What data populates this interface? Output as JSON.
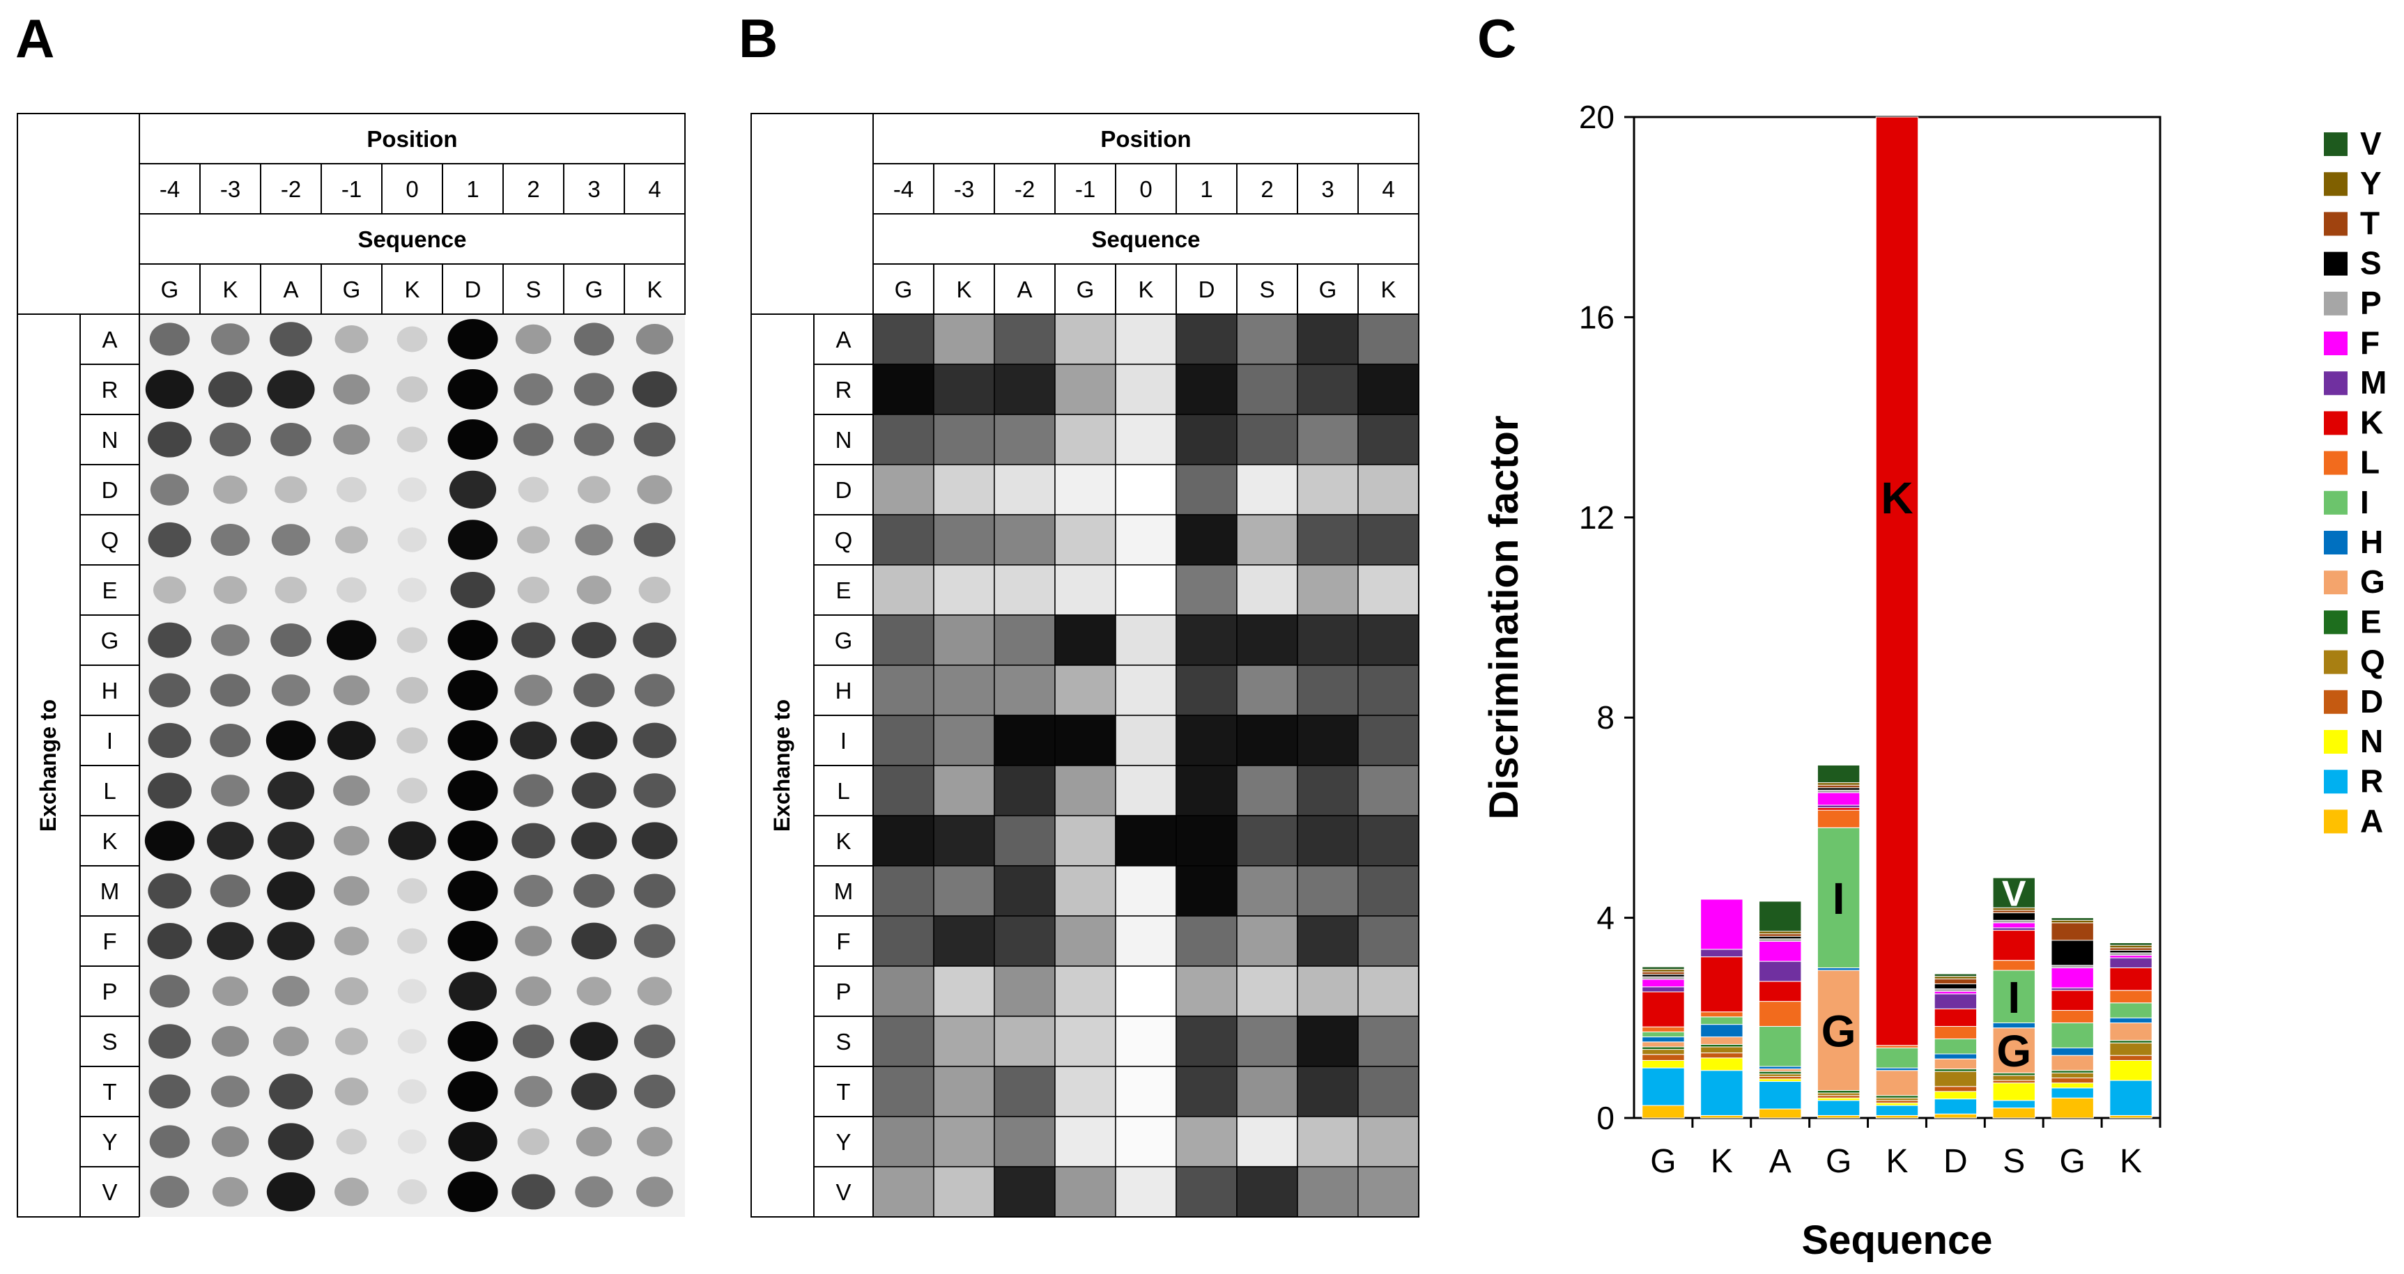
{
  "figure": {
    "panel_labels": [
      "A",
      "B",
      "C"
    ]
  },
  "table": {
    "position_label": "Position",
    "positions": [
      "-4",
      "-3",
      "-2",
      "-1",
      "0",
      "1",
      "2",
      "3",
      "4"
    ],
    "sequence_label": "Sequence",
    "sequence": [
      "G",
      "K",
      "A",
      "G",
      "K",
      "D",
      "S",
      "G",
      "K"
    ],
    "exchange_label": "Exchange to",
    "rows": [
      "A",
      "R",
      "N",
      "D",
      "Q",
      "E",
      "G",
      "H",
      "I",
      "L",
      "K",
      "M",
      "F",
      "P",
      "S",
      "T",
      "Y",
      "V"
    ]
  },
  "spot_intensity": [
    [
      0.55,
      0.48,
      0.65,
      0.25,
      0.12,
      1.0,
      0.35,
      0.55,
      0.42
    ],
    [
      0.92,
      0.72,
      0.88,
      0.4,
      0.15,
      1.0,
      0.5,
      0.55,
      0.75
    ],
    [
      0.72,
      0.6,
      0.58,
      0.4,
      0.12,
      1.0,
      0.55,
      0.55,
      0.62
    ],
    [
      0.48,
      0.28,
      0.2,
      0.1,
      0.05,
      0.85,
      0.12,
      0.22,
      0.32
    ],
    [
      0.68,
      0.5,
      0.48,
      0.22,
      0.06,
      0.98,
      0.22,
      0.45,
      0.62
    ],
    [
      0.22,
      0.25,
      0.18,
      0.1,
      0.05,
      0.75,
      0.18,
      0.3,
      0.18
    ],
    [
      0.7,
      0.48,
      0.58,
      0.98,
      0.12,
      1.0,
      0.72,
      0.75,
      0.7
    ],
    [
      0.62,
      0.55,
      0.48,
      0.38,
      0.18,
      1.0,
      0.45,
      0.6,
      0.55
    ],
    [
      0.68,
      0.58,
      0.98,
      0.92,
      0.15,
      1.0,
      0.85,
      0.85,
      0.7
    ],
    [
      0.72,
      0.48,
      0.85,
      0.4,
      0.12,
      1.0,
      0.55,
      0.75,
      0.65
    ],
    [
      0.98,
      0.85,
      0.85,
      0.35,
      0.9,
      1.0,
      0.7,
      0.8,
      0.8
    ],
    [
      0.7,
      0.55,
      0.9,
      0.35,
      0.1,
      1.0,
      0.5,
      0.6,
      0.62
    ],
    [
      0.75,
      0.85,
      0.88,
      0.3,
      0.1,
      1.0,
      0.4,
      0.78,
      0.6
    ],
    [
      0.55,
      0.35,
      0.42,
      0.25,
      0.05,
      0.9,
      0.35,
      0.3,
      0.3
    ],
    [
      0.65,
      0.42,
      0.35,
      0.22,
      0.05,
      1.0,
      0.6,
      0.9,
      0.6
    ],
    [
      0.62,
      0.48,
      0.72,
      0.25,
      0.05,
      1.0,
      0.45,
      0.8,
      0.6
    ],
    [
      0.55,
      0.42,
      0.8,
      0.12,
      0.04,
      0.95,
      0.18,
      0.35,
      0.35
    ],
    [
      0.5,
      0.35,
      0.92,
      0.28,
      0.08,
      1.0,
      0.7,
      0.45,
      0.4
    ]
  ],
  "heatmap_intensity": [
    [
      0.75,
      0.4,
      0.68,
      0.25,
      0.1,
      0.82,
      0.55,
      0.85,
      0.6
    ],
    [
      1.0,
      0.85,
      0.9,
      0.38,
      0.12,
      0.95,
      0.62,
      0.8,
      0.95
    ],
    [
      0.68,
      0.58,
      0.55,
      0.22,
      0.08,
      0.85,
      0.68,
      0.55,
      0.8
    ],
    [
      0.38,
      0.18,
      0.12,
      0.06,
      0.0,
      0.62,
      0.08,
      0.22,
      0.25
    ],
    [
      0.7,
      0.55,
      0.5,
      0.2,
      0.05,
      0.95,
      0.32,
      0.72,
      0.75
    ],
    [
      0.25,
      0.15,
      0.15,
      0.1,
      0.0,
      0.55,
      0.12,
      0.35,
      0.18
    ],
    [
      0.65,
      0.45,
      0.55,
      0.95,
      0.12,
      0.9,
      0.92,
      0.85,
      0.85
    ],
    [
      0.55,
      0.5,
      0.48,
      0.32,
      0.1,
      0.8,
      0.52,
      0.68,
      0.7
    ],
    [
      0.65,
      0.52,
      1.0,
      1.0,
      0.12,
      0.95,
      0.98,
      0.95,
      0.72
    ],
    [
      0.7,
      0.4,
      0.85,
      0.4,
      0.1,
      0.95,
      0.55,
      0.78,
      0.55
    ],
    [
      0.95,
      0.9,
      0.65,
      0.25,
      1.0,
      1.0,
      0.75,
      0.85,
      0.8
    ],
    [
      0.65,
      0.55,
      0.85,
      0.25,
      0.05,
      1.0,
      0.5,
      0.58,
      0.7
    ],
    [
      0.68,
      0.88,
      0.8,
      0.4,
      0.05,
      0.6,
      0.4,
      0.85,
      0.62
    ],
    [
      0.48,
      0.2,
      0.45,
      0.2,
      0.0,
      0.35,
      0.2,
      0.28,
      0.25
    ],
    [
      0.62,
      0.35,
      0.3,
      0.18,
      0.02,
      0.8,
      0.55,
      0.95,
      0.58
    ],
    [
      0.6,
      0.4,
      0.65,
      0.15,
      0.02,
      0.8,
      0.45,
      0.85,
      0.62
    ],
    [
      0.48,
      0.38,
      0.52,
      0.08,
      0.02,
      0.35,
      0.08,
      0.25,
      0.32
    ],
    [
      0.4,
      0.25,
      0.9,
      0.42,
      0.08,
      0.72,
      0.85,
      0.5,
      0.45
    ]
  ],
  "chart_data": {
    "type": "bar",
    "stacked": true,
    "title": "",
    "xlabel": "Sequence",
    "ylabel": "Discrimination factor",
    "ylim": [
      0,
      20
    ],
    "yticks": [
      0,
      4,
      8,
      12,
      16,
      20
    ],
    "categories": [
      "G",
      "K",
      "A",
      "G",
      "K",
      "D",
      "S",
      "G",
      "K"
    ],
    "legend_position": "right",
    "series": [
      {
        "name": "A",
        "color": "#FFC000",
        "values": [
          0.25,
          0.05,
          0.18,
          0.05,
          0.05,
          0.08,
          0.2,
          0.4,
          0.05
        ]
      },
      {
        "name": "R",
        "color": "#00B0F0",
        "values": [
          0.75,
          0.9,
          0.55,
          0.3,
          0.2,
          0.3,
          0.15,
          0.2,
          0.7
        ]
      },
      {
        "name": "N",
        "color": "#FFFF00",
        "values": [
          0.15,
          0.25,
          0.05,
          0.05,
          0.05,
          0.15,
          0.35,
          0.1,
          0.4
        ]
      },
      {
        "name": "D",
        "color": "#C55A11",
        "values": [
          0.12,
          0.1,
          0.05,
          0.05,
          0.05,
          0.1,
          0.05,
          0.1,
          0.1
        ]
      },
      {
        "name": "Q",
        "color": "#A87F12",
        "values": [
          0.1,
          0.12,
          0.05,
          0.05,
          0.05,
          0.3,
          0.1,
          0.1,
          0.25
        ]
      },
      {
        "name": "E",
        "color": "#1E6E1E",
        "values": [
          0.05,
          0.05,
          0.05,
          0.05,
          0.05,
          0.05,
          0.05,
          0.05,
          0.05
        ]
      },
      {
        "name": "G",
        "color": "#F4A46C",
        "values": [
          0.1,
          0.15,
          0.05,
          2.4,
          0.5,
          0.2,
          0.9,
          0.3,
          0.35
        ]
      },
      {
        "name": "H",
        "color": "#0070C0",
        "values": [
          0.1,
          0.25,
          0.05,
          0.05,
          0.05,
          0.1,
          0.1,
          0.15,
          0.1
        ]
      },
      {
        "name": "I",
        "color": "#6CC46C",
        "values": [
          0.1,
          0.15,
          0.8,
          2.8,
          0.4,
          0.3,
          1.05,
          0.5,
          0.3
        ]
      },
      {
        "name": "L",
        "color": "#F26B1D",
        "values": [
          0.1,
          0.1,
          0.5,
          0.35,
          0.05,
          0.25,
          0.2,
          0.25,
          0.25
        ]
      },
      {
        "name": "K",
        "color": "#E00000",
        "values": [
          0.7,
          1.1,
          0.4,
          0.05,
          18.9,
          0.35,
          0.6,
          0.4,
          0.45
        ]
      },
      {
        "name": "M",
        "color": "#7030A0",
        "values": [
          0.1,
          0.15,
          0.4,
          0.05,
          0.0,
          0.3,
          0.05,
          0.05,
          0.2
        ]
      },
      {
        "name": "F",
        "color": "#FF00FF",
        "values": [
          0.15,
          1.0,
          0.4,
          0.25,
          0.0,
          0.05,
          0.1,
          0.4,
          0.05
        ]
      },
      {
        "name": "P",
        "color": "#A6A6A6",
        "values": [
          0.05,
          0.0,
          0.05,
          0.05,
          0.0,
          0.05,
          0.05,
          0.05,
          0.05
        ]
      },
      {
        "name": "S",
        "color": "#000000",
        "values": [
          0.05,
          0.0,
          0.05,
          0.05,
          0.0,
          0.1,
          0.15,
          0.5,
          0.05
        ]
      },
      {
        "name": "T",
        "color": "#A0430F",
        "values": [
          0.05,
          0.0,
          0.05,
          0.05,
          0.0,
          0.1,
          0.05,
          0.35,
          0.05
        ]
      },
      {
        "name": "Y",
        "color": "#806000",
        "values": [
          0.05,
          0.0,
          0.05,
          0.05,
          0.0,
          0.05,
          0.05,
          0.05,
          0.05
        ]
      },
      {
        "name": "V",
        "color": "#1E5A1E",
        "values": [
          0.05,
          0.0,
          0.6,
          0.35,
          0.0,
          0.05,
          0.6,
          0.05,
          0.05
        ]
      }
    ],
    "annotations": [
      {
        "text": "K",
        "category_index": 4,
        "series": "K",
        "color": "#000000"
      },
      {
        "text": "I",
        "category_index": 3,
        "series": "I",
        "color": "#000000"
      },
      {
        "text": "G",
        "category_index": 3,
        "series": "G",
        "color": "#000000"
      },
      {
        "text": "V",
        "category_index": 6,
        "series": "V",
        "color": "#FFFFFF"
      },
      {
        "text": "I",
        "category_index": 6,
        "series": "I",
        "color": "#000000"
      },
      {
        "text": "G",
        "category_index": 6,
        "series": "G",
        "color": "#000000"
      }
    ]
  }
}
